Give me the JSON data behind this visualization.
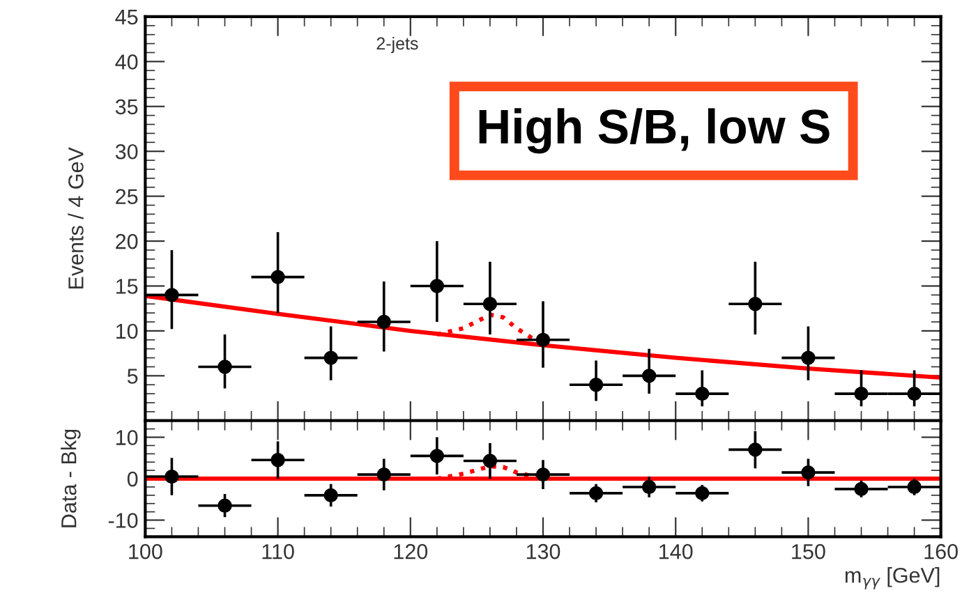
{
  "chart_data": [
    {
      "type": "scatter",
      "ylabel": "Events / 4 GeV",
      "annotations": [
        "2-jets",
        "High S/B, low S"
      ],
      "xlim": [
        100,
        160
      ],
      "xticks": [
        100,
        110,
        120,
        130,
        140,
        150,
        160
      ],
      "ylim": [
        0,
        45
      ],
      "yticks": [
        5,
        10,
        15,
        20,
        25,
        30,
        35,
        40,
        45
      ],
      "tick_labels": "y",
      "grid": false,
      "legend": false,
      "series": [
        {
          "color": "#000000",
          "marker": "circle",
          "x": [
            102,
            106,
            110,
            114,
            118,
            122,
            126,
            130,
            134,
            138,
            142,
            146,
            150,
            154,
            158
          ],
          "values": [
            14,
            6,
            16,
            7,
            11,
            15,
            13,
            9,
            4,
            5,
            3,
            13,
            7,
            3,
            3
          ],
          "errors": [
            [
              10.2,
              19
            ],
            [
              3.6,
              9.6
            ],
            [
              12,
              21
            ],
            [
              4.5,
              10.5
            ],
            [
              7.7,
              15.5
            ],
            [
              11,
              20
            ],
            [
              9.6,
              17.7
            ],
            [
              5.9,
              13.3
            ],
            [
              2.2,
              6.7
            ],
            [
              3,
              8
            ],
            [
              1.6,
              5.6
            ],
            [
              9.6,
              17.7
            ],
            [
              4.5,
              10.5
            ],
            [
              1.6,
              5.6
            ],
            [
              1.6,
              5.6
            ]
          ],
          "xerrors": [
            2,
            2,
            2,
            2,
            2,
            2,
            2,
            2,
            2,
            2,
            2,
            2,
            2,
            2,
            2
          ]
        },
        {
          "type": "line",
          "color": "#ff0000",
          "line_style": "solid",
          "x": [
            100,
            110,
            120,
            130,
            140,
            150,
            160
          ],
          "values": [
            13.9,
            11.9,
            10,
            8.4,
            7,
            5.8,
            4.8
          ]
        },
        {
          "type": "line",
          "color": "#ff0000",
          "line_style": "dotted",
          "x": [
            122,
            124,
            126,
            127,
            128,
            130
          ],
          "values": [
            9.6,
            10.3,
            11.8,
            11.5,
            10.3,
            8.4
          ]
        }
      ]
    },
    {
      "type": "scatter",
      "ylabel": "Data - Bkg",
      "xlabel": "m$_{γγ}$ [GeV]",
      "xlim": [
        100,
        160
      ],
      "xticks": [
        100,
        110,
        120,
        130,
        140,
        150,
        160
      ],
      "ylim": [
        -14,
        14
      ],
      "yticks": [
        -10,
        0,
        10
      ],
      "grid": false,
      "legend": false,
      "series": [
        {
          "color": "#000000",
          "marker": "circle",
          "x": [
            102,
            106,
            110,
            114,
            118,
            122,
            126,
            130,
            134,
            138,
            142,
            146,
            150,
            154,
            158
          ],
          "values": [
            0.5,
            -6.5,
            4.5,
            -4,
            1,
            5.5,
            4.3,
            1,
            -3.5,
            -2,
            -3.5,
            7,
            1.5,
            -2.5,
            -2
          ],
          "errors": [
            4.5,
            2.8,
            4.5,
            2.7,
            3.8,
            4.5,
            4.3,
            3.5,
            2.2,
            2.5,
            2,
            4.5,
            3.3,
            2,
            2
          ],
          "xerrors": [
            2,
            2,
            2,
            2,
            2,
            2,
            2,
            2,
            2,
            2,
            2,
            2,
            2,
            2,
            2
          ]
        },
        {
          "type": "line",
          "color": "#ff0000",
          "line_style": "solid",
          "x": [
            100,
            160
          ],
          "values": [
            0,
            0
          ]
        },
        {
          "type": "line",
          "color": "#ff0000",
          "line_style": "dotted",
          "x": [
            122,
            124,
            126,
            127,
            128,
            130
          ],
          "values": [
            0,
            1.2,
            3,
            2.8,
            1.5,
            0
          ]
        }
      ]
    }
  ]
}
